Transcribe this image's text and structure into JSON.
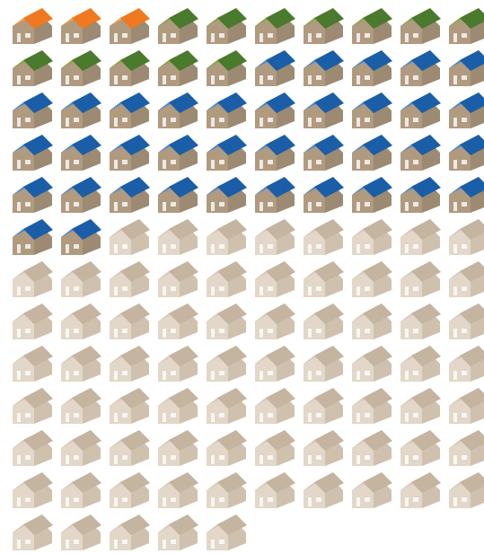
{
  "chart_data": {
    "type": "pictogram",
    "icon": "house-icon",
    "units_per_row": 10,
    "series": [
      {
        "key": "orange",
        "count": 3,
        "roof_light": "#ffa040",
        "roof_dark": "#f07820",
        "body": "#b09a80",
        "side": "#9c8a72"
      },
      {
        "key": "green",
        "count": 12,
        "roof_light": "#88a838",
        "roof_dark": "#4a7a2c",
        "body": "#b09a80",
        "side": "#9c8a72"
      },
      {
        "key": "blue",
        "count": 37,
        "roof_light": "#4a88cc",
        "roof_dark": "#1a5ea8",
        "body": "#b09a80",
        "side": "#9c8a72"
      },
      {
        "key": "neutral",
        "count": 73,
        "roof_light": "#d8cab8",
        "roof_dark": "#c4b4a0",
        "body": "#e2d7c8",
        "side": "#cfc1ae"
      }
    ]
  }
}
